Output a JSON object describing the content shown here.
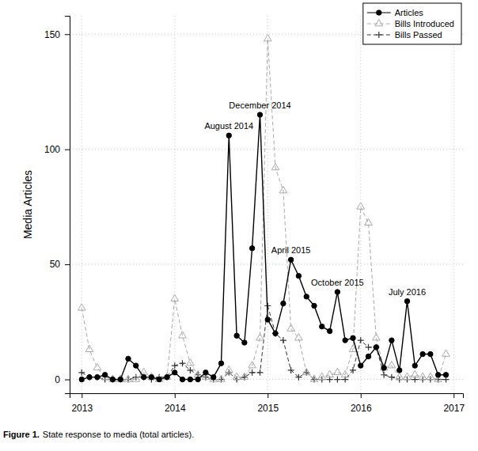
{
  "chart_data": {
    "type": "line",
    "y_label": "Media Articles",
    "caption": {
      "label": "Figure 1.",
      "text": "State response to media (total articles)."
    },
    "x": [
      2013,
      2013.083,
      2013.167,
      2013.25,
      2013.333,
      2013.417,
      2013.5,
      2013.583,
      2013.667,
      2013.75,
      2013.833,
      2013.917,
      2014,
      2014.083,
      2014.167,
      2014.25,
      2014.333,
      2014.417,
      2014.5,
      2014.583,
      2014.667,
      2014.75,
      2014.833,
      2014.917,
      2015,
      2015.083,
      2015.167,
      2015.25,
      2015.333,
      2015.417,
      2015.5,
      2015.583,
      2015.667,
      2015.75,
      2015.833,
      2015.917,
      2016,
      2016.083,
      2016.167,
      2016.25,
      2016.333,
      2016.417,
      2016.5,
      2016.583,
      2016.667,
      2016.75,
      2016.833,
      2016.917
    ],
    "series": [
      {
        "name": "Articles",
        "color": "#000000",
        "marker": "circle",
        "line_style": "solid",
        "values": [
          0,
          1,
          1,
          2,
          0,
          0,
          9,
          6,
          1,
          1,
          0,
          1,
          3,
          0,
          0,
          0,
          3,
          1,
          7,
          106,
          19,
          16,
          57,
          115,
          26,
          20,
          33,
          52,
          45,
          36,
          32,
          23,
          21,
          38,
          17,
          18,
          6,
          10,
          14,
          5,
          17,
          4,
          34,
          6,
          11,
          11,
          2,
          2
        ]
      },
      {
        "name": "Bills Introduced",
        "color": "#aaaaaa",
        "marker": "triangle",
        "line_style": "dashed",
        "values": [
          31,
          13,
          5,
          1,
          0,
          0,
          0,
          0,
          3,
          1,
          0,
          1,
          35,
          19,
          7,
          2,
          1,
          0,
          0,
          4,
          1,
          1,
          6,
          18,
          148,
          92,
          82,
          22,
          18,
          3,
          0,
          1,
          2,
          3,
          2,
          13,
          75,
          68,
          18,
          5,
          6,
          1,
          1,
          2,
          1,
          1,
          0,
          11
        ]
      },
      {
        "name": "Bills Passed",
        "color": "#333333",
        "marker": "plus",
        "line_style": "dashed",
        "values": [
          3,
          1,
          1,
          0,
          0,
          0,
          0,
          1,
          1,
          0,
          1,
          1,
          6,
          7,
          4,
          2,
          1,
          0,
          0,
          3,
          0,
          1,
          3,
          3,
          32,
          20,
          17,
          4,
          1,
          3,
          0,
          0,
          0,
          0,
          0,
          4,
          17,
          14,
          14,
          2,
          1,
          0,
          0,
          0,
          0,
          0,
          0,
          0
        ]
      }
    ],
    "annotations": [
      {
        "text": "August 2014",
        "x": 2014.583,
        "y": 106
      },
      {
        "text": "December 2014",
        "x": 2014.917,
        "y": 115
      },
      {
        "text": "April 2015",
        "x": 2015.25,
        "y": 52
      },
      {
        "text": "October 2015",
        "x": 2015.75,
        "y": 38
      },
      {
        "text": "July 2016",
        "x": 2016.5,
        "y": 34
      }
    ],
    "xlim": [
      2012.87,
      2017.1
    ],
    "xticks": [
      2013,
      2014,
      2015,
      2016,
      2017
    ],
    "ylim": [
      -6,
      158
    ],
    "yticks": [
      0,
      50,
      100,
      150
    ],
    "grid": true,
    "legend": "top-right"
  }
}
